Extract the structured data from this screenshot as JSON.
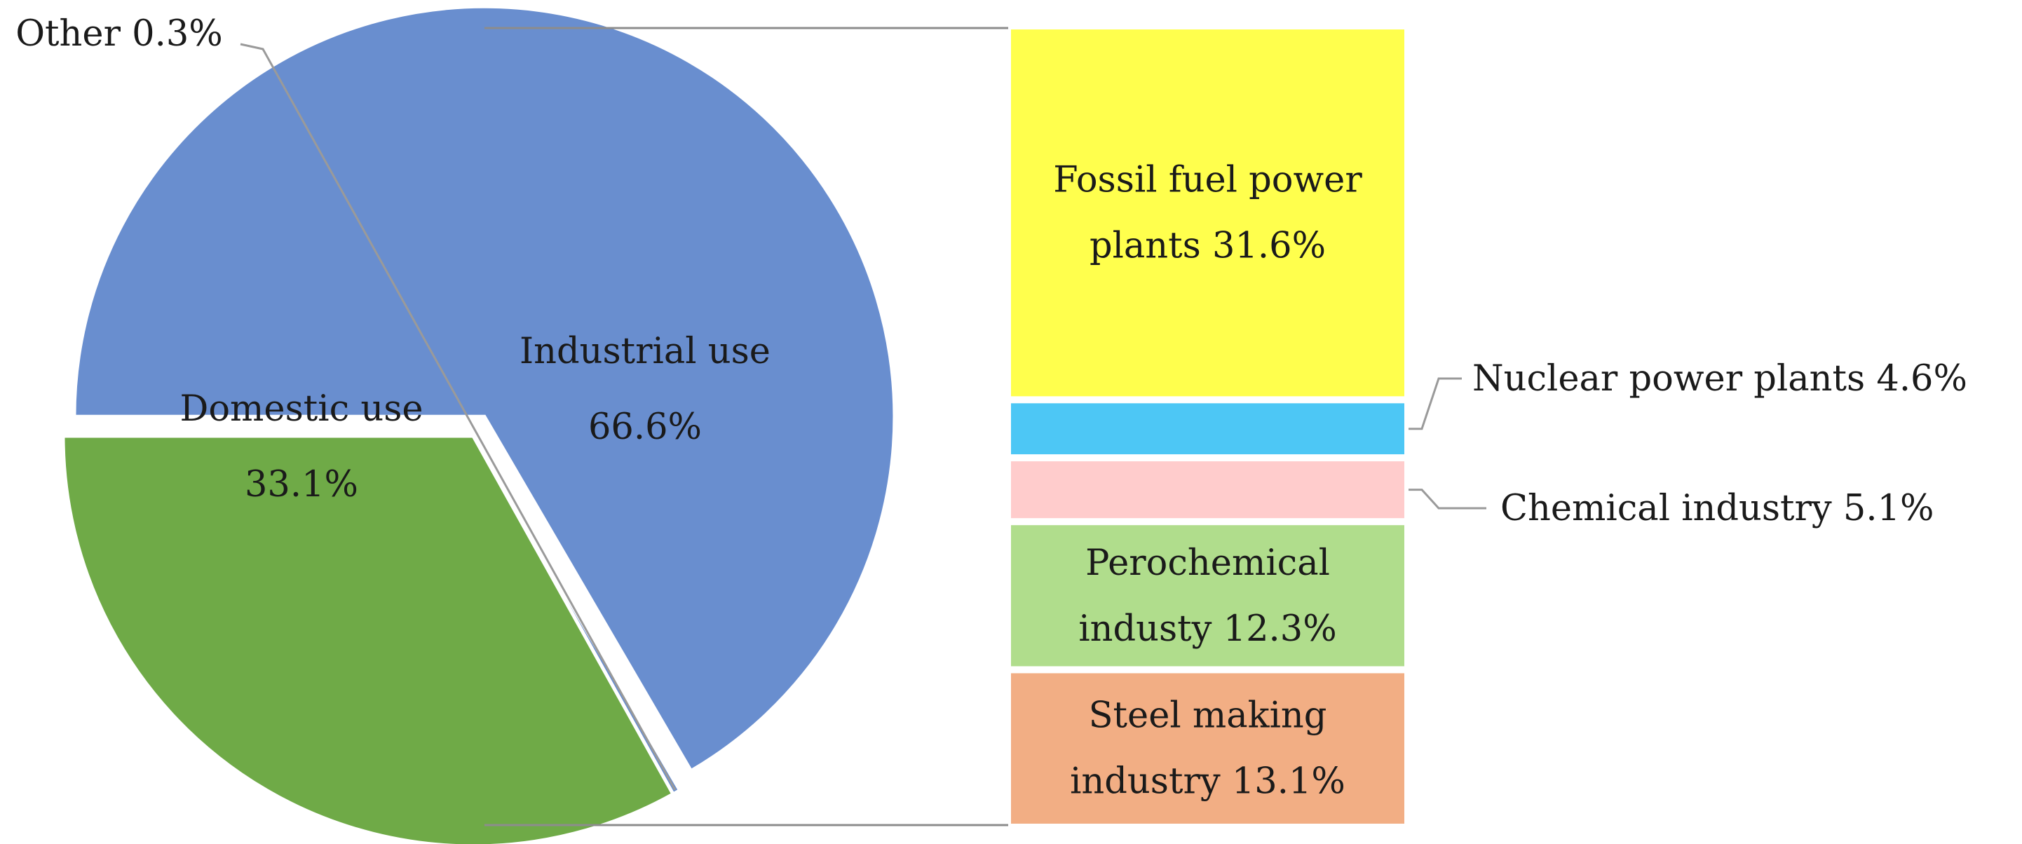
{
  "chart_data": {
    "type": "bar-of-pie",
    "pie": {
      "slices": [
        {
          "name": "Industrial use",
          "value": 66.6,
          "label": "66.6%",
          "color": "#698ECF"
        },
        {
          "name": "Other",
          "value": 0.3,
          "label": "0.3%",
          "color": "#698ECF"
        },
        {
          "name": "Domestic use",
          "value": 33.1,
          "label": "33.1%",
          "color": "#6FAA47"
        }
      ]
    },
    "breakdown_of": "Industrial use",
    "bar": {
      "segments": [
        {
          "name": "Fossil fuel power plants",
          "value": 31.6,
          "lines": [
            "Fossil fuel power",
            "plants 31.6%"
          ],
          "color": "#FFFF4D",
          "label_position": "inside"
        },
        {
          "name": "Nuclear power plants",
          "value": 4.6,
          "lines": [
            "Nuclear power plants 4.6%"
          ],
          "color": "#4DC7F5",
          "label_position": "outside"
        },
        {
          "name": "Chemical industry",
          "value": 5.1,
          "lines": [
            "Chemical industry 5.1%"
          ],
          "color": "#FFCCCC",
          "label_position": "outside"
        },
        {
          "name": "Perochemical industy",
          "value": 12.3,
          "lines": [
            "Perochemical",
            "industy 12.3%"
          ],
          "color": "#B0DD8C",
          "label_position": "inside"
        },
        {
          "name": "Steel making industry",
          "value": 13.1,
          "lines": [
            "Steel making",
            "industry 13.1%"
          ],
          "color": "#F2AE84",
          "label_position": "inside"
        }
      ]
    },
    "labels": {
      "industrial": [
        "Industrial use",
        "66.6%"
      ],
      "domestic": [
        "Domestic use",
        "33.1%"
      ],
      "other": [
        "Other 0.3%"
      ]
    }
  }
}
